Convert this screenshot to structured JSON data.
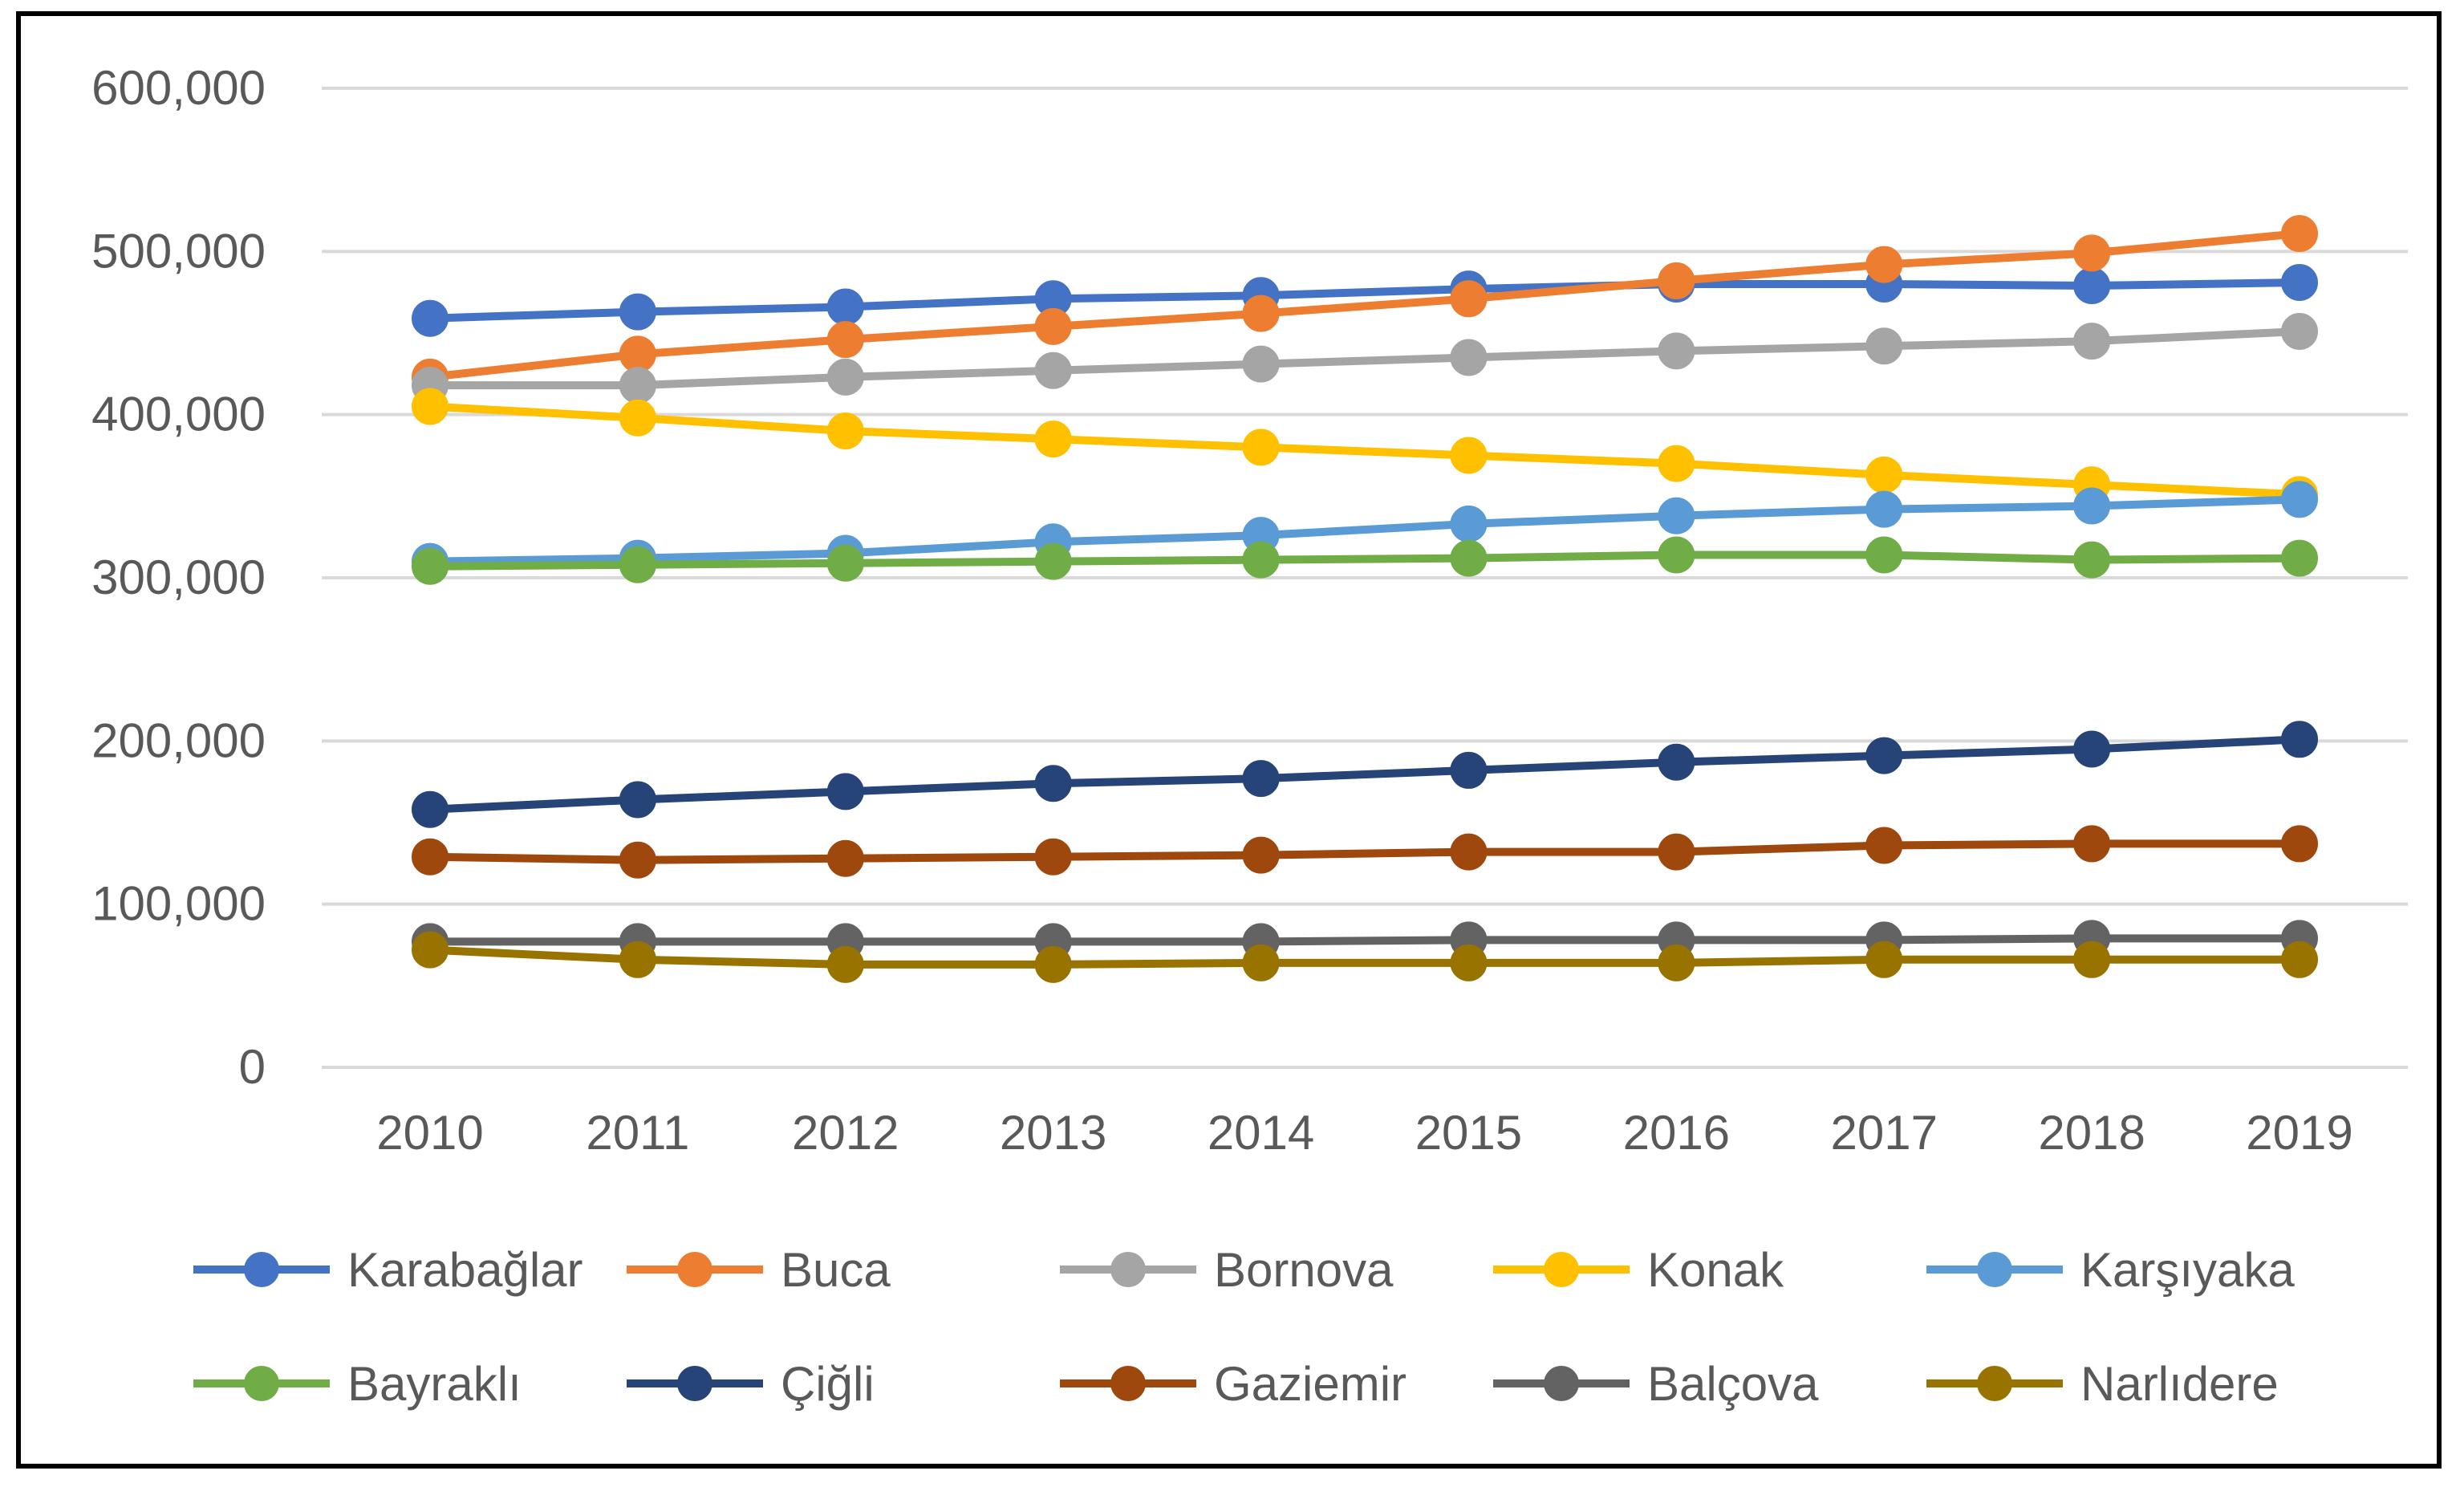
{
  "chart_data": {
    "type": "line",
    "title": "",
    "xlabel": "",
    "ylabel": "",
    "x": [
      "2010",
      "2011",
      "2012",
      "2013",
      "2014",
      "2015",
      "2016",
      "2017",
      "2018",
      "2019"
    ],
    "ylim": [
      0,
      600000
    ],
    "yticks": [
      0,
      100000,
      200000,
      300000,
      400000,
      500000,
      600000
    ],
    "ytick_labels": [
      "0",
      "100,000",
      "200,000",
      "300,000",
      "400,000",
      "500,000",
      "600,000"
    ],
    "grid": true,
    "legend_position": "bottom",
    "series": [
      {
        "name": "Karabağlar",
        "color": "#4472C4",
        "values": [
          459000,
          463000,
          466000,
          471000,
          473000,
          477000,
          480000,
          480000,
          479000,
          481000
        ]
      },
      {
        "name": "Buca",
        "color": "#ED7D31",
        "values": [
          423000,
          437000,
          446000,
          454000,
          462000,
          471000,
          482000,
          492000,
          499000,
          511000
        ]
      },
      {
        "name": "Bornova",
        "color": "#A5A5A5",
        "values": [
          418000,
          418000,
          423000,
          427000,
          431000,
          435000,
          439000,
          442000,
          445000,
          451000
        ]
      },
      {
        "name": "Konak",
        "color": "#FFC000",
        "values": [
          405000,
          398000,
          390000,
          385000,
          380000,
          375000,
          370000,
          363000,
          357000,
          351000
        ]
      },
      {
        "name": "Karşıyaka",
        "color": "#5B9BD5",
        "values": [
          310000,
          312000,
          315000,
          322000,
          326000,
          333000,
          338000,
          342000,
          344000,
          348000
        ]
      },
      {
        "name": "Bayraklı",
        "color": "#70AD47",
        "values": [
          307000,
          308000,
          309000,
          310000,
          311000,
          312000,
          314000,
          314000,
          311000,
          312000
        ]
      },
      {
        "name": "Çiğli",
        "color": "#264478",
        "values": [
          158000,
          164000,
          169000,
          174000,
          177000,
          182000,
          187000,
          191000,
          195000,
          201000
        ]
      },
      {
        "name": "Gaziemir",
        "color": "#9E480E",
        "values": [
          129000,
          127000,
          128000,
          129000,
          130000,
          132000,
          132000,
          136000,
          137000,
          137000
        ]
      },
      {
        "name": "Balçova",
        "color": "#636363",
        "values": [
          77000,
          77000,
          77000,
          77000,
          77000,
          78000,
          78000,
          78000,
          79000,
          79000
        ]
      },
      {
        "name": "Narlıdere",
        "color": "#997300",
        "values": [
          72000,
          66000,
          63000,
          63000,
          64000,
          64000,
          64000,
          66000,
          66000,
          66000
        ]
      }
    ]
  }
}
